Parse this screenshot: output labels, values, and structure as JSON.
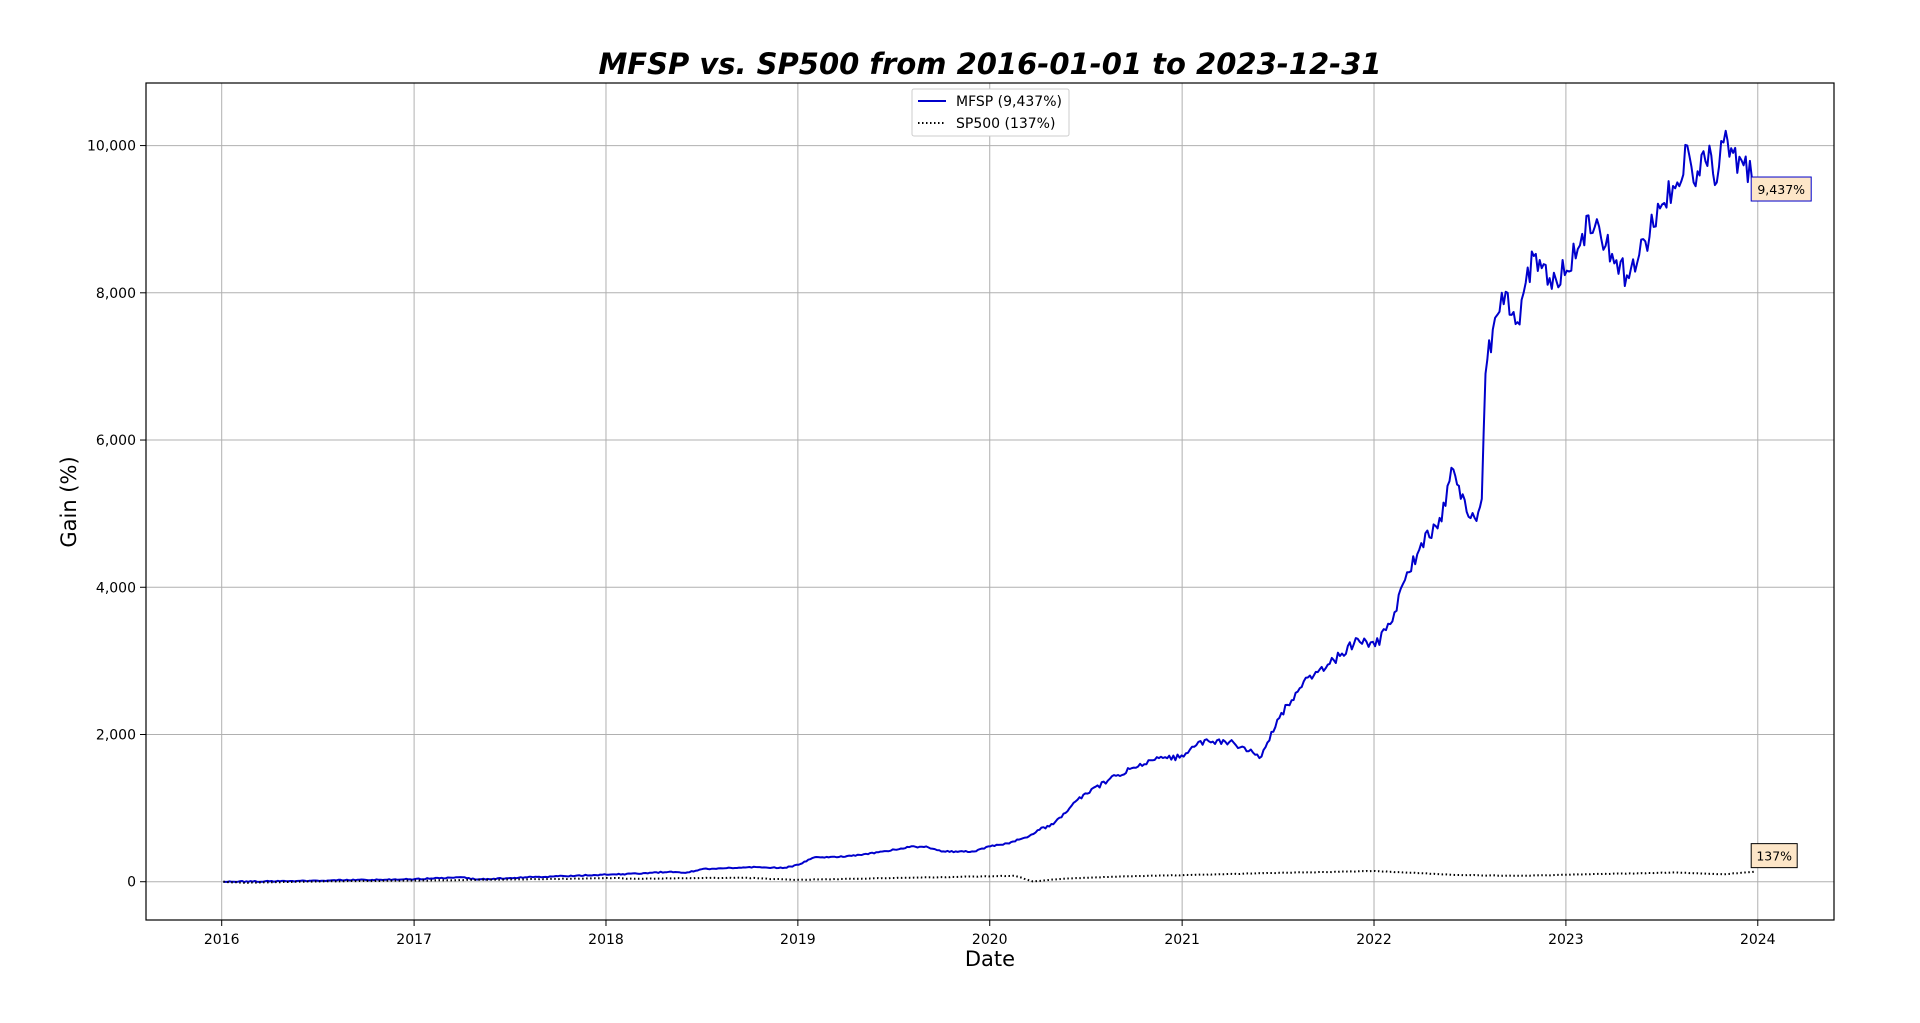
{
  "chart_data": {
    "type": "line",
    "title": "MFSP vs. SP500 from 2016-01-01 to 2023-12-31",
    "xlabel": "Date",
    "ylabel": "Gain (%)",
    "xlim": [
      "2015-08-10",
      "2024-05-25"
    ],
    "ylim": [
      -520,
      10850
    ],
    "x_ticks": [
      "2016",
      "2017",
      "2018",
      "2019",
      "2020",
      "2021",
      "2022",
      "2023",
      "2024"
    ],
    "y_ticks": [
      0,
      2000,
      4000,
      6000,
      8000,
      10000
    ],
    "y_tick_labels": [
      "0",
      "2,000",
      "4,000",
      "6,000",
      "8,000",
      "10,000"
    ],
    "grid": true,
    "legend_position": "top-center",
    "series": [
      {
        "name": "MFSP (9,437%)",
        "color": "#0000cc",
        "style": "solid",
        "end_label": "9,437%",
        "points": [
          [
            "2016-01-04",
            0
          ],
          [
            "2016-04-01",
            5
          ],
          [
            "2016-07-01",
            15
          ],
          [
            "2016-10-01",
            25
          ],
          [
            "2017-01-02",
            35
          ],
          [
            "2017-04-03",
            60
          ],
          [
            "2017-05-01",
            30
          ],
          [
            "2017-07-03",
            50
          ],
          [
            "2017-10-02",
            75
          ],
          [
            "2018-01-02",
            95
          ],
          [
            "2018-03-01",
            110
          ],
          [
            "2018-05-01",
            135
          ],
          [
            "2018-06-01",
            120
          ],
          [
            "2018-07-02",
            170
          ],
          [
            "2018-10-01",
            200
          ],
          [
            "2018-12-03",
            185
          ],
          [
            "2019-01-02",
            230
          ],
          [
            "2019-02-01",
            330
          ],
          [
            "2019-04-01",
            340
          ],
          [
            "2019-06-03",
            400
          ],
          [
            "2019-08-01",
            470
          ],
          [
            "2019-09-02",
            480
          ],
          [
            "2019-10-01",
            410
          ],
          [
            "2019-12-02",
            410
          ],
          [
            "2020-01-02",
            480
          ],
          [
            "2020-02-03",
            520
          ],
          [
            "2020-03-16",
            620
          ],
          [
            "2020-04-01",
            700
          ],
          [
            "2020-05-01",
            780
          ],
          [
            "2020-06-01",
            1000
          ],
          [
            "2020-07-01",
            1200
          ],
          [
            "2020-09-01",
            1450
          ],
          [
            "2020-10-01",
            1550
          ],
          [
            "2020-11-02",
            1650
          ],
          [
            "2021-01-04",
            1700
          ],
          [
            "2021-02-01",
            1900
          ],
          [
            "2021-04-01",
            1900
          ],
          [
            "2021-06-01",
            1700
          ],
          [
            "2021-07-01",
            2200
          ],
          [
            "2021-09-01",
            2800
          ],
          [
            "2021-10-01",
            2900
          ],
          [
            "2021-11-01",
            3100
          ],
          [
            "2021-12-01",
            3300
          ],
          [
            "2022-01-03",
            3200
          ],
          [
            "2022-02-01",
            3500
          ],
          [
            "2022-03-01",
            4100
          ],
          [
            "2022-04-01",
            4600
          ],
          [
            "2022-05-02",
            4800
          ],
          [
            "2022-06-01",
            5600
          ],
          [
            "2022-06-15",
            5200
          ],
          [
            "2022-07-15",
            4900
          ],
          [
            "2022-07-25",
            5200
          ],
          [
            "2022-08-01",
            6900
          ],
          [
            "2022-08-15",
            7500
          ],
          [
            "2022-09-01",
            8000
          ],
          [
            "2022-10-01",
            7600
          ],
          [
            "2022-11-01",
            8500
          ],
          [
            "2022-12-01",
            8200
          ],
          [
            "2023-01-03",
            8300
          ],
          [
            "2023-02-01",
            8800
          ],
          [
            "2023-03-01",
            9000
          ],
          [
            "2023-04-03",
            8400
          ],
          [
            "2023-05-01",
            8200
          ],
          [
            "2023-06-01",
            8700
          ],
          [
            "2023-07-03",
            9200
          ],
          [
            "2023-08-01",
            9500
          ],
          [
            "2023-08-20",
            10000
          ],
          [
            "2023-09-01",
            9500
          ],
          [
            "2023-10-01",
            10000
          ],
          [
            "2023-10-15",
            9500
          ],
          [
            "2023-11-01",
            10200
          ],
          [
            "2023-11-15",
            9900
          ],
          [
            "2023-12-01",
            9800
          ],
          [
            "2023-12-29",
            9437
          ]
        ]
      },
      {
        "name": "SP500 (137%)",
        "color": "#000000",
        "style": "dotted",
        "end_label": "137%",
        "points": [
          [
            "2016-01-04",
            0
          ],
          [
            "2016-02-11",
            -15
          ],
          [
            "2016-07-01",
            5
          ],
          [
            "2017-01-02",
            15
          ],
          [
            "2017-07-03",
            30
          ],
          [
            "2018-01-26",
            50
          ],
          [
            "2018-02-09",
            40
          ],
          [
            "2018-09-20",
            55
          ],
          [
            "2018-12-24",
            25
          ],
          [
            "2019-07-01",
            50
          ],
          [
            "2020-02-19",
            80
          ],
          [
            "2020-03-23",
            5
          ],
          [
            "2020-06-01",
            45
          ],
          [
            "2020-09-01",
            70
          ],
          [
            "2021-01-04",
            90
          ],
          [
            "2021-07-01",
            120
          ],
          [
            "2022-01-03",
            145
          ],
          [
            "2022-06-16",
            90
          ],
          [
            "2022-10-12",
            80
          ],
          [
            "2023-01-03",
            95
          ],
          [
            "2023-07-31",
            125
          ],
          [
            "2023-10-27",
            100
          ],
          [
            "2023-12-29",
            137
          ]
        ]
      }
    ]
  }
}
